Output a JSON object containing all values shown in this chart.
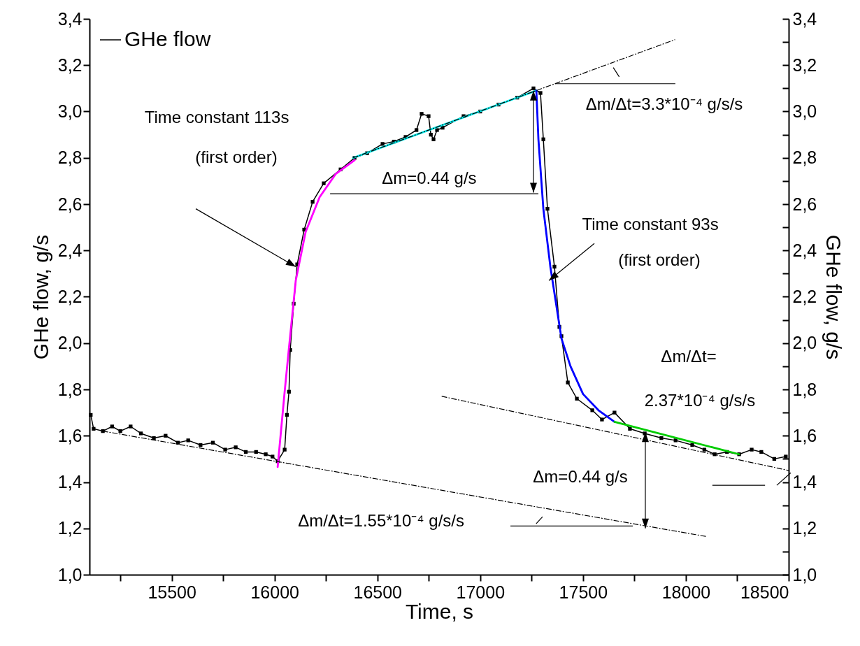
{
  "chart_data": {
    "type": "line",
    "xlabel": "Time, s",
    "ylabel": "GHe flow, g/s",
    "y2label": "GHe flow, g/s",
    "legend": "top left",
    "marker": "square",
    "xlim": [
      15100,
      18500
    ],
    "xticks": [
      {
        "value": 15250,
        "label": null
      },
      15500,
      {
        "value": 15750,
        "label": null
      },
      16000,
      {
        "value": 16250,
        "label": null
      },
      16500,
      {
        "value": 16750,
        "label": null
      },
      17000,
      {
        "value": 17250,
        "label": null
      },
      17500,
      {
        "value": 17750,
        "label": null
      },
      18000,
      {
        "value": 18250,
        "label": null
      },
      18500
    ],
    "ylim": [
      1.0,
      3.4
    ],
    "yticks": [
      {
        "value": 1.0,
        "label": "1,0"
      },
      {
        "value": 1.1,
        "label": null
      },
      {
        "value": 1.2,
        "label": "1,2"
      },
      {
        "value": 1.3,
        "label": null
      },
      {
        "value": 1.4,
        "label": "1,4"
      },
      {
        "value": 1.5,
        "label": null
      },
      {
        "value": 1.6,
        "label": "1,6"
      },
      {
        "value": 1.7,
        "label": null
      },
      {
        "value": 1.8,
        "label": "1,8"
      },
      {
        "value": 1.9,
        "label": null
      },
      {
        "value": 2.0,
        "label": "2,0"
      },
      {
        "value": 2.1,
        "label": null
      },
      {
        "value": 2.2,
        "label": "2,2"
      },
      {
        "value": 2.3,
        "label": null
      },
      {
        "value": 2.4,
        "label": "2,4"
      },
      {
        "value": 2.5,
        "label": null
      },
      {
        "value": 2.6,
        "label": "2,6"
      },
      {
        "value": 2.7,
        "label": null
      },
      {
        "value": 2.8,
        "label": "2,8"
      },
      {
        "value": 2.9,
        "label": null
      },
      {
        "value": 3.0,
        "label": "3,0"
      },
      {
        "value": 3.1,
        "label": null
      },
      {
        "value": 3.2,
        "label": "3,2"
      },
      {
        "value": 3.3,
        "label": null
      },
      {
        "value": 3.4,
        "label": "3,4"
      }
    ],
    "y2lim": [
      1.0,
      3.4
    ],
    "y2ticks": [
      {
        "value": 1.0,
        "label": "1,0"
      },
      {
        "value": 1.1,
        "label": null
      },
      {
        "value": 1.2,
        "label": "1,2"
      },
      {
        "value": 1.3,
        "label": null
      },
      {
        "value": 1.4,
        "label": "1,4"
      },
      {
        "value": 1.5,
        "label": null
      },
      {
        "value": 1.6,
        "label": "1,6"
      },
      {
        "value": 1.7,
        "label": null
      },
      {
        "value": 1.8,
        "label": "1,8"
      },
      {
        "value": 1.9,
        "label": null
      },
      {
        "value": 2.0,
        "label": "2,0"
      },
      {
        "value": 2.1,
        "label": null
      },
      {
        "value": 2.2,
        "label": "2,2"
      },
      {
        "value": 2.3,
        "label": null
      },
      {
        "value": 2.4,
        "label": "2,4"
      },
      {
        "value": 2.5,
        "label": null
      },
      {
        "value": 2.6,
        "label": "2,6"
      },
      {
        "value": 2.7,
        "label": null
      },
      {
        "value": 2.8,
        "label": "2,8"
      },
      {
        "value": 2.9,
        "label": null
      },
      {
        "value": 3.0,
        "label": "3,0"
      },
      {
        "value": 3.1,
        "label": null
      },
      {
        "value": 3.2,
        "label": "3,2"
      },
      {
        "value": 3.3,
        "label": null
      },
      {
        "value": 3.4,
        "label": "3,4"
      }
    ],
    "series": [
      {
        "name": "GHe flow",
        "color": "#000000",
        "x": [
          15106,
          15120,
          15165,
          15210,
          15250,
          15300,
          15350,
          15413,
          15470,
          15530,
          15580,
          15640,
          15700,
          15760,
          15811,
          15860,
          15910,
          15957,
          15990,
          16015,
          16049,
          16060,
          16070,
          16076,
          16093,
          16110,
          16144,
          16185,
          16239,
          16321,
          16389,
          16450,
          16525,
          16580,
          16637,
          16690,
          16715,
          16749,
          16760,
          16773,
          16790,
          16817,
          16919,
          17000,
          17089,
          17180,
          17259,
          17293,
          17307,
          17327,
          17361,
          17385,
          17395,
          17426,
          17470,
          17545,
          17592,
          17653,
          17728,
          17800,
          17881,
          17950,
          18031,
          18090,
          18140,
          18200,
          18259,
          18320,
          18367,
          18430,
          18486
        ],
        "values": [
          1.69,
          1.63,
          1.62,
          1.64,
          1.62,
          1.64,
          1.61,
          1.59,
          1.6,
          1.57,
          1.58,
          1.56,
          1.57,
          1.54,
          1.55,
          1.53,
          1.53,
          1.52,
          1.51,
          1.49,
          1.54,
          1.69,
          1.79,
          1.97,
          2.17,
          2.34,
          2.49,
          2.61,
          2.69,
          2.75,
          2.8,
          2.82,
          2.86,
          2.87,
          2.89,
          2.92,
          2.99,
          2.98,
          2.9,
          2.88,
          2.92,
          2.93,
          2.98,
          3.0,
          3.03,
          3.06,
          3.1,
          3.08,
          2.88,
          2.58,
          2.33,
          2.07,
          2.03,
          1.83,
          1.76,
          1.71,
          1.67,
          1.7,
          1.63,
          1.61,
          1.59,
          1.58,
          1.56,
          1.54,
          1.52,
          1.53,
          1.52,
          1.54,
          1.53,
          1.5,
          1.51
        ]
      },
      {
        "color": "#ff00ff",
        "marker": "none",
        "x": [
          16015,
          16049,
          16069,
          16103,
          16151,
          16219,
          16297,
          16389
        ],
        "values": [
          1.465,
          1.79,
          1.97,
          2.27,
          2.48,
          2.63,
          2.73,
          2.79
        ]
      },
      {
        "color": "#00e8e8",
        "marker": "none",
        "x": [
          16382,
          17273
        ],
        "values": [
          2.8,
          3.09
        ]
      },
      {
        "color": "#0000ff",
        "marker": "none",
        "x": [
          17273,
          17283,
          17307,
          17341,
          17395,
          17439,
          17500,
          17575,
          17653
        ],
        "values": [
          3.09,
          2.88,
          2.58,
          2.33,
          2.02,
          1.9,
          1.78,
          1.71,
          1.66
        ]
      },
      {
        "color": "#00cc00",
        "marker": "none",
        "x": [
          17653,
          18259
        ],
        "values": [
          1.66,
          1.52
        ]
      },
      {
        "color": "#000000",
        "marker": "none",
        "line_style": "dashed",
        "x": [
          15165,
          18099
        ],
        "values": [
          1.62,
          1.165
        ]
      },
      {
        "color": "#000000",
        "marker": "none",
        "line_style": "dashed",
        "x": [
          16382,
          17946
        ],
        "values": [
          2.8,
          3.31
        ]
      },
      {
        "color": "#000000",
        "marker": "none",
        "line_style": "dashed",
        "x": [
          16814,
          18500
        ],
        "values": [
          1.77,
          1.45
        ]
      }
    ],
    "annotations": [
      "Time constant 113s",
      "(first order)",
      "Δm=0.44 g/s",
      {
        "text": "Δm/Δt=3.3*10⁻⁴ g/s/s",
        "x": 17364,
        "y": 3.12
      },
      {
        "text": "Time constant 93s",
        "x": 17334,
        "y": 2.27
      },
      "(first order)",
      "Δm/Δt=",
      "2.37*10⁻⁴ g/s/s",
      "Δm=0.44 g/s",
      "Δm/Δt=1.55*10⁻⁴ g/s/s"
    ]
  }
}
